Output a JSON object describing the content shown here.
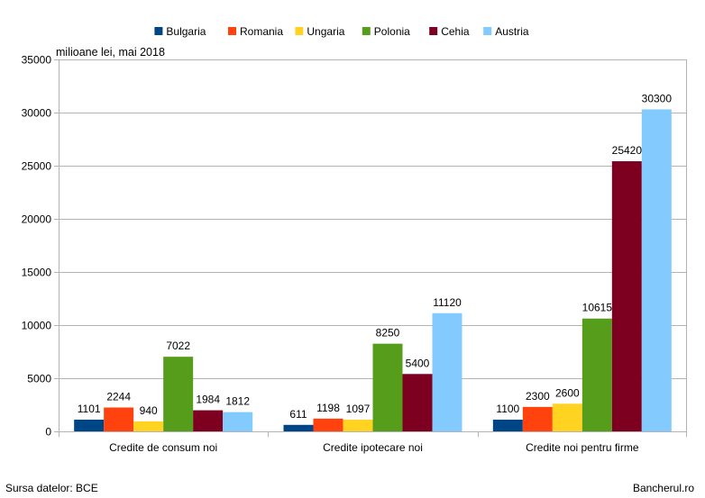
{
  "chart_data": {
    "type": "bar",
    "unit_label": "milioane lei, mai 2018",
    "categories": [
      "Credite de consum noi",
      "Credite ipotecare noi",
      "Credite noi pentru firme"
    ],
    "series": [
      {
        "name": "Bulgaria",
        "color": "#004586",
        "values": [
          1101,
          611,
          1100
        ]
      },
      {
        "name": "Romania",
        "color": "#ff420e",
        "values": [
          2244,
          1198,
          2300
        ]
      },
      {
        "name": "Ungaria",
        "color": "#ffd320",
        "values": [
          940,
          1097,
          2600
        ]
      },
      {
        "name": "Polonia",
        "color": "#579d1c",
        "values": [
          7022,
          8250,
          10615
        ]
      },
      {
        "name": "Cehia",
        "color": "#7e0021",
        "values": [
          1984,
          5400,
          25420
        ]
      },
      {
        "name": "Austria",
        "color": "#83caff",
        "values": [
          1812,
          11120,
          30300
        ]
      }
    ],
    "yticks": [
      0,
      5000,
      10000,
      15000,
      20000,
      25000,
      30000,
      35000
    ],
    "ylim": [
      0,
      35000
    ],
    "grid": true,
    "legend_position": "top"
  },
  "footer": {
    "source": "Sursa datelor: BCE",
    "brand": "Bancherul.ro"
  }
}
